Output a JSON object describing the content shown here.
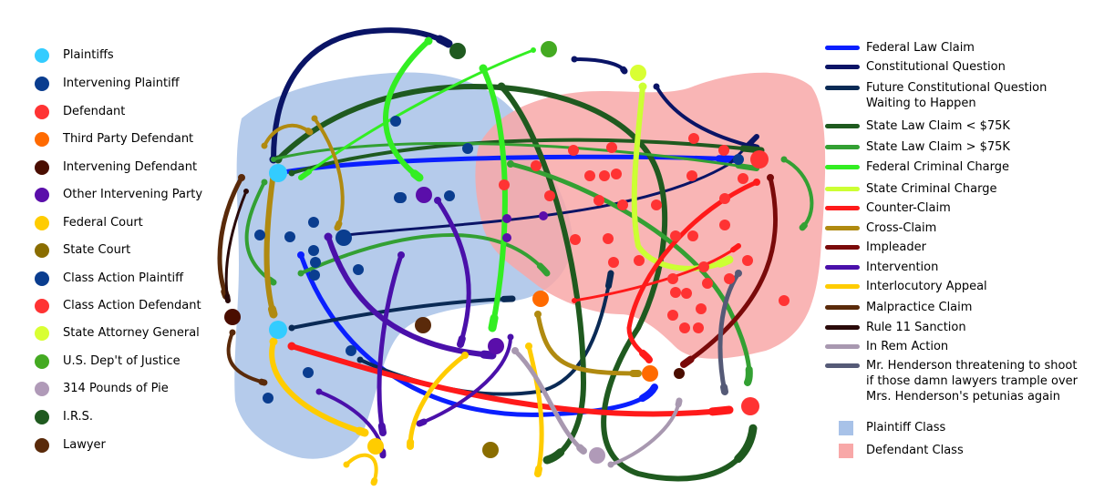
{
  "node_types": [
    {
      "key": "plaintiff",
      "label": "Plaintiffs",
      "color": "#33ccff"
    },
    {
      "key": "intervening_plaintiff",
      "label": "Intervening Plaintiff",
      "color": "#0a3d8f"
    },
    {
      "key": "defendant",
      "label": "Defendant",
      "color": "#ff3333"
    },
    {
      "key": "third_party_defendant",
      "label": "Third Party Defendant",
      "color": "#ff6a00"
    },
    {
      "key": "intervening_defendant",
      "label": "Intervening Defendant",
      "color": "#4a0d00"
    },
    {
      "key": "other_intervening",
      "label": "Other Intervening Party",
      "color": "#5a0eaa"
    },
    {
      "key": "federal_court",
      "label": "Federal Court",
      "color": "#ffcc00"
    },
    {
      "key": "state_court",
      "label": "State Court",
      "color": "#8a6d00"
    },
    {
      "key": "class_action_plaintiff",
      "label": "Class Action Plaintiff",
      "color": "#0a3d8f"
    },
    {
      "key": "class_action_defendant",
      "label": "Class Action Defendant",
      "color": "#ff3333"
    },
    {
      "key": "state_ag",
      "label": "State Attorney General",
      "color": "#d9ff33"
    },
    {
      "key": "doj",
      "label": "U.S. Dep't of Justice",
      "color": "#44aa22"
    },
    {
      "key": "pie",
      "label": "314 Pounds of Pie",
      "color": "#b09ab8"
    },
    {
      "key": "irs",
      "label": "I.R.S.",
      "color": "#1f5a1f"
    },
    {
      "key": "lawyer",
      "label": "Lawyer",
      "color": "#5a2a0a"
    }
  ],
  "link_types": [
    {
      "key": "federal_law",
      "label": "Federal Law Claim",
      "color": "#0a1fff"
    },
    {
      "key": "constitutional",
      "label": "Constitutional Question",
      "color": "#0a1466"
    },
    {
      "key": "future_constitutional",
      "label": "Future Constitutional Question Waiting to Happen",
      "lines": [
        "Future Constitutional Question",
        "Waiting to Happen"
      ],
      "color": "#0a2a55"
    },
    {
      "key": "state_lt",
      "label": "State Law Claim < $75K",
      "color": "#1f5a1f"
    },
    {
      "key": "state_gt",
      "label": "State Law Claim > $75K",
      "color": "#33a033"
    },
    {
      "key": "fed_criminal",
      "label": "Federal Criminal Charge",
      "color": "#33ee22"
    },
    {
      "key": "state_criminal",
      "label": "State Criminal Charge",
      "color": "#ccff33"
    },
    {
      "key": "counter",
      "label": "Counter-Claim",
      "color": "#ff1a1a"
    },
    {
      "key": "cross",
      "label": "Cross-Claim",
      "color": "#b08a10"
    },
    {
      "key": "impleader",
      "label": "Impleader",
      "color": "#7a0a0a"
    },
    {
      "key": "intervention",
      "label": "Intervention",
      "color": "#4a10aa"
    },
    {
      "key": "interlocutory",
      "label": "Interlocutory Appeal",
      "color": "#ffcc00"
    },
    {
      "key": "malpractice",
      "label": "Malpractice Claim",
      "color": "#5a2a0a"
    },
    {
      "key": "rule11",
      "label": "Rule 11 Sanction",
      "color": "#2a0a0a"
    },
    {
      "key": "in_rem",
      "label": "In Rem Action",
      "color": "#a898b0"
    },
    {
      "key": "henderson",
      "label": "Mr. Henderson threatening to shoot if those damn lawyers trample over Mrs. Henderson's petunias again",
      "lines": [
        "Mr. Henderson threatening to shoot",
        "if those damn lawyers trample over",
        "Mrs. Henderson's petunias again"
      ],
      "color": "#555a77"
    }
  ],
  "regions": [
    {
      "key": "plaintiff_class",
      "label": "Plaintiff Class",
      "color": "#a8c2e8"
    },
    {
      "key": "defendant_class",
      "label": "Defendant Class",
      "color": "#f8a8a8"
    }
  ]
}
